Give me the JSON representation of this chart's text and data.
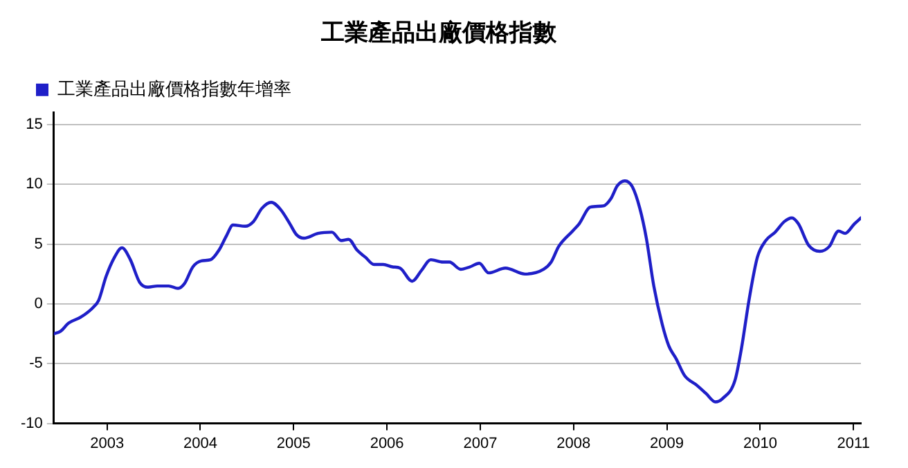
{
  "chart_data": {
    "type": "line",
    "title": "工業產品出廠價格指數",
    "x": [
      2002.43,
      2002.5,
      2002.59,
      2002.72,
      2002.85,
      2002.91,
      2002.99,
      2003.08,
      2003.16,
      2003.25,
      2003.35,
      2003.44,
      2003.54,
      2003.66,
      2003.76,
      2003.83,
      2003.92,
      2004.01,
      2004.11,
      2004.2,
      2004.28,
      2004.35,
      2004.48,
      2004.57,
      2004.66,
      2004.76,
      2004.86,
      2004.96,
      2005.03,
      2005.11,
      2005.26,
      2005.41,
      2005.51,
      2005.59,
      2005.68,
      2005.77,
      2005.86,
      2005.96,
      2006.06,
      2006.14,
      2006.27,
      2006.37,
      2006.47,
      2006.6,
      2006.67,
      2006.79,
      2006.89,
      2006.99,
      2007.09,
      2007.27,
      2007.48,
      2007.68,
      2007.76,
      2007.84,
      2007.99,
      2008.06,
      2008.18,
      2008.32,
      2008.4,
      2008.47,
      2008.55,
      2008.63,
      2008.71,
      2008.78,
      2008.86,
      2008.95,
      2009.02,
      2009.1,
      2009.19,
      2009.32,
      2009.42,
      2009.52,
      2009.6,
      2009.73,
      2009.8,
      2009.88,
      2009.97,
      2010.06,
      2010.16,
      2010.26,
      2010.34,
      2010.41,
      2010.52,
      2010.64,
      2010.74,
      2010.84,
      2010.91,
      2011.01,
      2011.08
    ],
    "series": [
      {
        "name": "工業產品出廠價格指數年增率",
        "color": "#1f1fc8",
        "values": [
          -2.5,
          -2.3,
          -1.6,
          -1.1,
          -0.3,
          0.3,
          2.3,
          3.9,
          4.7,
          3.7,
          1.8,
          1.4,
          1.5,
          1.5,
          1.3,
          1.7,
          3.1,
          3.6,
          3.7,
          4.5,
          5.7,
          6.6,
          6.5,
          6.9,
          8.0,
          8.5,
          7.9,
          6.7,
          5.8,
          5.5,
          5.9,
          6.0,
          5.3,
          5.4,
          4.5,
          3.9,
          3.3,
          3.3,
          3.1,
          3.0,
          1.9,
          2.8,
          3.7,
          3.5,
          3.5,
          2.9,
          3.1,
          3.4,
          2.6,
          3.0,
          2.5,
          2.9,
          3.5,
          4.8,
          6.1,
          6.7,
          8.1,
          8.2,
          8.8,
          9.9,
          10.3,
          9.8,
          8.0,
          5.5,
          1.5,
          -1.7,
          -3.5,
          -4.6,
          -6.0,
          -6.8,
          -7.5,
          -8.2,
          -7.9,
          -6.4,
          -3.7,
          0.3,
          3.9,
          5.3,
          6.0,
          6.9,
          7.2,
          6.7,
          4.9,
          4.4,
          4.8,
          6.1,
          5.9,
          6.7,
          7.2
        ]
      }
    ],
    "xlim": [
      2002.43,
      2011.08
    ],
    "xticks": [
      2003,
      2004,
      2005,
      2006,
      2007,
      2008,
      2009,
      2010,
      2011
    ],
    "ylim": [
      -10,
      16
    ],
    "yticks": [
      -10,
      -5,
      0,
      5,
      10,
      15
    ],
    "grid": "y",
    "legend": "top left",
    "marker": "none",
    "line_style": "solid"
  }
}
